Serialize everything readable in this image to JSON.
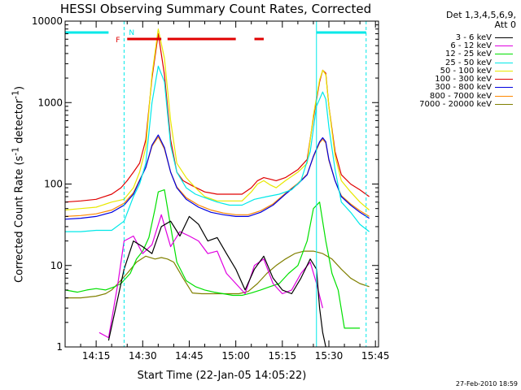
{
  "chart_data": {
    "type": "line",
    "title": "HESSI Observing Summary Count Rates, Corrected",
    "xlabel": "Start Time (22-Jan-05 14:05:22)",
    "ylabel": "Corrected Count Rate (s^-1 detector^-1)",
    "ylabel_parts": {
      "main": "Corrected Count Rate (s",
      "sup1": "-1",
      "mid": " detector",
      "sup2": "-1",
      "end": ")"
    },
    "y_scale": "log",
    "ylim": [
      1,
      10000
    ],
    "xlim": [
      "14:05",
      "15:46"
    ],
    "x_ticks": [
      "14:15",
      "14:30",
      "14:45",
      "15:00",
      "15:15",
      "15:30",
      "15:45"
    ],
    "y_ticks": [
      "1",
      "10",
      "100",
      "1000",
      "10000"
    ],
    "detectors": "Det 1,3,4,5,6,9,",
    "attenuator": "Att 0",
    "series": [
      {
        "name": "3 - 6 keV",
        "color": "#000000",
        "x": [
          "14:05",
          "14:19",
          "14:22",
          "14:24",
          "14:27",
          "14:30",
          "14:33",
          "14:36",
          "14:39",
          "14:42",
          "14:45",
          "14:48",
          "14:51",
          "14:54",
          "14:57",
          "15:00",
          "15:03",
          "15:06",
          "15:09",
          "15:12",
          "15:15",
          "15:18",
          "15:21",
          "15:24",
          "15:26",
          "15:27",
          "15:28",
          "15:29",
          "15:30"
        ],
        "y": [
          null,
          1.2,
          4,
          9,
          20,
          17,
          14,
          30,
          35,
          23,
          40,
          32,
          20,
          22,
          14,
          9,
          5,
          9,
          13,
          7,
          5,
          4.5,
          7,
          12,
          9,
          3,
          1.5,
          1,
          null
        ]
      },
      {
        "name": "6 - 12 keV",
        "color": "#e000e0",
        "x": [
          "14:05",
          "14:16",
          "14:19",
          "14:22",
          "14:24",
          "14:27",
          "14:30",
          "14:33",
          "14:36",
          "14:39",
          "14:42",
          "14:45",
          "14:48",
          "14:51",
          "14:54",
          "14:57",
          "15:00",
          "15:03",
          "15:06",
          "15:09",
          "15:12",
          "15:15",
          "15:18",
          "15:21",
          "15:24",
          "15:26",
          "15:28",
          "15:30"
        ],
        "y": [
          null,
          1.5,
          1.3,
          6,
          20,
          23,
          14,
          18,
          42,
          17,
          26,
          23,
          20,
          14,
          15,
          8,
          6,
          4.5,
          10,
          12,
          6,
          4.5,
          5,
          8,
          11,
          6,
          3,
          null
        ]
      },
      {
        "name": "12 - 25 keV",
        "color": "#00e000",
        "x": [
          "14:05",
          "14:09",
          "14:12",
          "14:15",
          "14:18",
          "14:21",
          "14:23",
          "14:26",
          "14:28",
          "14:30",
          "14:32",
          "14:34",
          "14:35",
          "14:37",
          "14:39",
          "14:41",
          "14:44",
          "14:47",
          "14:50",
          "14:53",
          "14:56",
          "14:59",
          "15:02",
          "15:05",
          "15:08",
          "15:11",
          "15:14",
          "15:17",
          "15:20",
          "15:23",
          "15:25",
          "15:27",
          "15:29",
          "15:31",
          "15:33",
          "15:35",
          "15:38",
          "15:40"
        ],
        "y": [
          5,
          4.7,
          5,
          5.2,
          5,
          5.5,
          6,
          8,
          12,
          15,
          22,
          50,
          80,
          85,
          30,
          11,
          6.5,
          5.5,
          5,
          4.7,
          4.5,
          4.3,
          4.3,
          4.6,
          5,
          5.5,
          6,
          8,
          10,
          20,
          50,
          60,
          20,
          8,
          5,
          1.7,
          1.7,
          1.7
        ]
      },
      {
        "name": "25 - 50 keV",
        "color": "#00e8e8",
        "x": [
          "14:05",
          "14:10",
          "14:15",
          "14:20",
          "14:24",
          "14:27",
          "14:29",
          "14:31",
          "14:33",
          "14:35",
          "14:37",
          "14:39",
          "14:41",
          "14:44",
          "14:47",
          "14:50",
          "14:54",
          "14:58",
          "15:02",
          "15:06",
          "15:10",
          "15:14",
          "15:18",
          "15:21",
          "15:24",
          "15:26",
          "15:28",
          "15:29",
          "15:30",
          "15:32",
          "15:34",
          "15:37",
          "15:40",
          "15:43"
        ],
        "y": [
          26,
          26,
          27,
          27,
          35,
          70,
          100,
          180,
          1000,
          2800,
          1800,
          300,
          140,
          90,
          75,
          68,
          60,
          55,
          55,
          65,
          70,
          75,
          85,
          110,
          250,
          900,
          1350,
          1100,
          500,
          150,
          60,
          45,
          32,
          26
        ]
      },
      {
        "name": "50 - 100 keV",
        "color": "#e8e800",
        "x": [
          "14:05",
          "14:10",
          "14:15",
          "14:20",
          "14:24",
          "14:27",
          "14:29",
          "14:31",
          "14:33",
          "14:35",
          "14:37",
          "14:39",
          "14:41",
          "14:44",
          "14:47",
          "14:50",
          "14:54",
          "14:58",
          "15:02",
          "15:05",
          "15:07",
          "15:09",
          "15:11",
          "15:13",
          "15:16",
          "15:20",
          "15:23",
          "15:25",
          "15:27",
          "15:28",
          "15:29",
          "15:30",
          "15:32",
          "15:34",
          "15:37",
          "15:40",
          "15:43"
        ],
        "y": [
          48,
          50,
          52,
          60,
          65,
          90,
          140,
          280,
          2200,
          8000,
          3500,
          600,
          180,
          120,
          90,
          70,
          62,
          62,
          62,
          80,
          100,
          110,
          98,
          90,
          110,
          140,
          180,
          700,
          1900,
          2500,
          2200,
          900,
          220,
          110,
          80,
          60,
          48
        ]
      },
      {
        "name": "100 - 300 keV",
        "color": "#e00000",
        "x": [
          "14:05",
          "14:10",
          "14:15",
          "14:20",
          "14:23",
          "14:25",
          "14:27",
          "14:29",
          "14:31",
          "14:33",
          "14:35",
          "14:37",
          "14:39",
          "14:41",
          "14:43",
          "14:46",
          "14:50",
          "14:54",
          "14:58",
          "15:02",
          "15:05",
          "15:07",
          "15:09",
          "15:11",
          "15:13",
          "15:16",
          "15:20",
          "15:23",
          "15:25",
          "15:27",
          "15:28",
          "15:29",
          "15:30",
          "15:32",
          "15:34",
          "15:37",
          "15:40",
          "15:43"
        ],
        "y": [
          60,
          62,
          65,
          75,
          90,
          110,
          140,
          180,
          350,
          2000,
          7000,
          2200,
          350,
          140,
          110,
          95,
          80,
          75,
          75,
          75,
          90,
          110,
          120,
          115,
          110,
          120,
          150,
          200,
          650,
          1800,
          2500,
          2300,
          900,
          250,
          130,
          100,
          85,
          70
        ]
      },
      {
        "name": "300 - 800 keV",
        "color": "#0000e0",
        "x": [
          "14:05",
          "14:10",
          "14:15",
          "14:20",
          "14:24",
          "14:27",
          "14:29",
          "14:31",
          "14:33",
          "14:35",
          "14:37",
          "14:39",
          "14:41",
          "14:44",
          "14:48",
          "14:52",
          "14:56",
          "15:00",
          "15:04",
          "15:08",
          "15:12",
          "15:16",
          "15:20",
          "15:23",
          "15:25",
          "15:27",
          "15:28",
          "15:29",
          "15:30",
          "15:32",
          "15:34",
          "15:37",
          "15:40",
          "15:43"
        ],
        "y": [
          37,
          38,
          40,
          45,
          55,
          75,
          110,
          160,
          300,
          400,
          280,
          140,
          90,
          65,
          52,
          45,
          42,
          40,
          40,
          45,
          55,
          75,
          100,
          130,
          220,
          330,
          370,
          330,
          200,
          110,
          70,
          55,
          45,
          38
        ]
      },
      {
        "name": "800 - 7000 keV",
        "color": "#ff8800",
        "x": [
          "14:05",
          "14:10",
          "14:15",
          "14:20",
          "14:24",
          "14:27",
          "14:29",
          "14:31",
          "14:33",
          "14:35",
          "14:37",
          "14:39",
          "14:41",
          "14:44",
          "14:48",
          "14:52",
          "14:56",
          "15:00",
          "15:04",
          "15:08",
          "15:12",
          "15:16",
          "15:20",
          "15:23",
          "15:25",
          "15:27",
          "15:28",
          "15:29",
          "15:30",
          "15:32",
          "15:34",
          "15:37",
          "15:40",
          "15:43"
        ],
        "y": [
          40,
          41,
          43,
          48,
          58,
          78,
          112,
          160,
          290,
          380,
          270,
          140,
          92,
          68,
          55,
          48,
          44,
          42,
          42,
          47,
          57,
          77,
          102,
          132,
          215,
          320,
          355,
          320,
          195,
          110,
          72,
          57,
          47,
          40
        ]
      },
      {
        "name": "7000 - 20000 keV",
        "color": "#808000",
        "x": [
          "14:05",
          "14:10",
          "14:15",
          "14:18",
          "14:20",
          "14:22",
          "14:25",
          "14:28",
          "14:31",
          "14:34",
          "14:36",
          "14:38",
          "14:40",
          "14:43",
          "14:46",
          "14:49",
          "14:52",
          "14:55",
          "14:58",
          "15:01",
          "15:04",
          "15:07",
          "15:10",
          "15:13",
          "15:16",
          "15:19",
          "15:22",
          "15:25",
          "15:28",
          "15:31",
          "15:34",
          "15:37",
          "15:40",
          "15:43"
        ],
        "y": [
          4,
          4,
          4.2,
          4.5,
          5,
          6,
          8,
          11,
          13,
          12,
          12.5,
          12,
          11,
          7,
          4.6,
          4.5,
          4.5,
          4.5,
          4.5,
          4.5,
          4.8,
          6,
          8,
          10,
          12,
          14,
          15,
          15,
          14,
          12,
          9,
          7,
          6,
          5.5
        ]
      }
    ],
    "markers": [
      {
        "label": "N",
        "color": "#00e8e8"
      },
      {
        "label": "F",
        "color": "#e00000"
      }
    ],
    "saa_segments": [
      [
        "14:05",
        "14:19"
      ],
      [
        "15:26",
        "15:42"
      ]
    ],
    "flare_segments": [
      [
        "14:25",
        "14:36"
      ],
      [
        "14:38",
        "15:00"
      ],
      [
        "15:06",
        "15:09"
      ]
    ],
    "eclipse_lines": [
      "14:05",
      "14:24",
      "15:26",
      "15:42"
    ],
    "footer_stamp": "27-Feb-2010 18:59",
    "grid": false,
    "legend_position": "right"
  }
}
